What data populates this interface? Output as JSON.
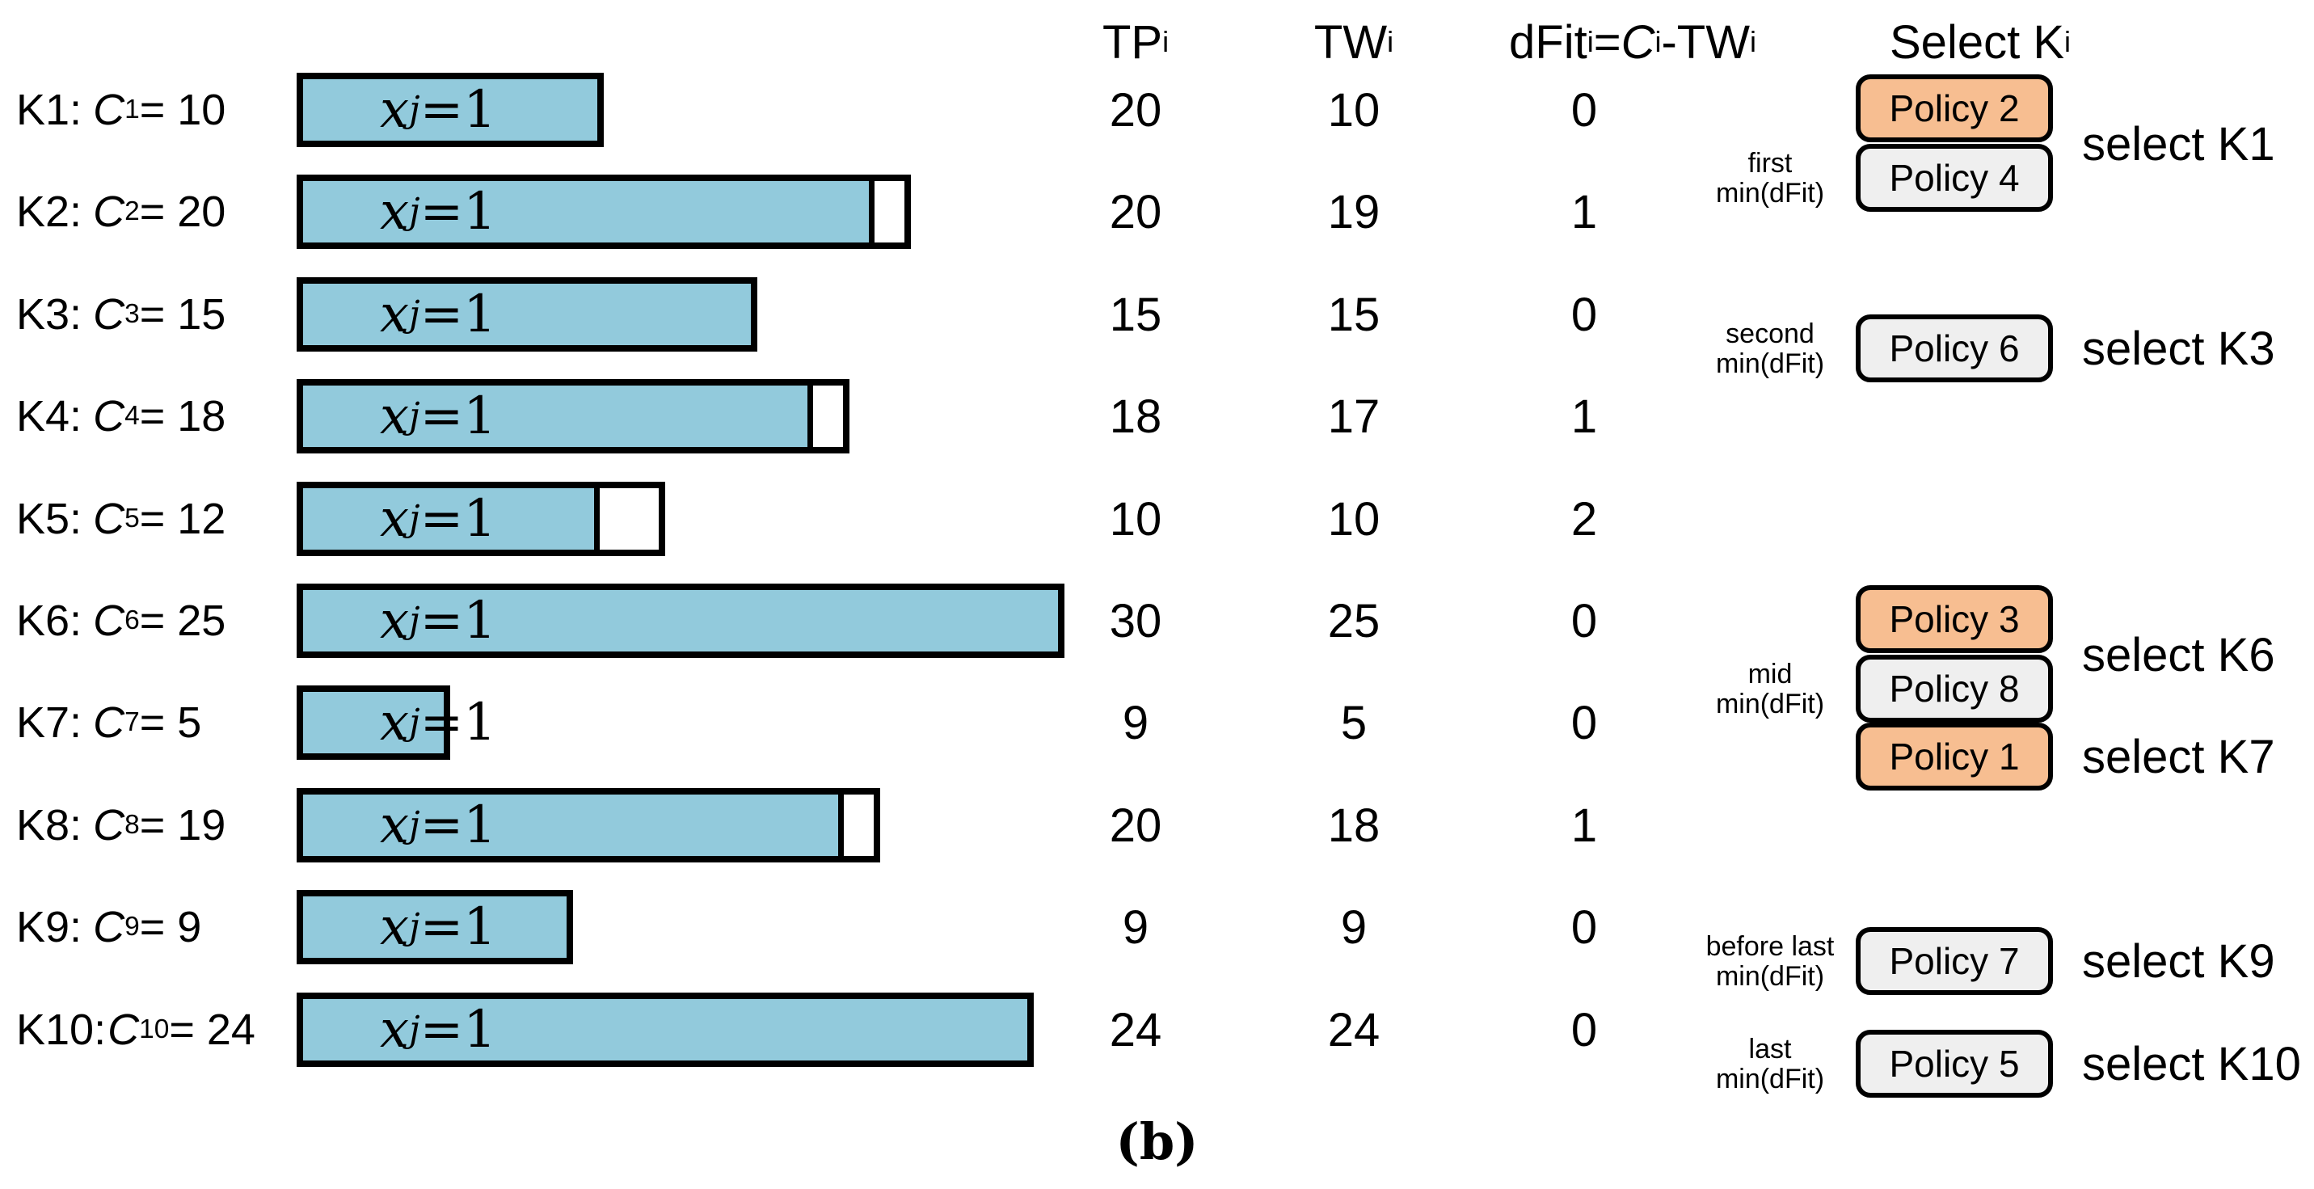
{
  "header": {
    "tp": {
      "base": "TP",
      "sub": "i"
    },
    "tw": {
      "base": "TW",
      "sub": "i"
    },
    "dfit": {
      "p1": "dFit",
      "s1": "i",
      "p2": "=",
      "var": "C",
      "s2": "i",
      "p3": "-TW",
      "s3": "i"
    },
    "select": {
      "base": "Select K",
      "sub": "i"
    }
  },
  "bar_label": {
    "var": "x",
    "sub": "j",
    "eq": "=1"
  },
  "colors": {
    "bar_fill": "#92CADC",
    "policy_selected": "#F7BE91",
    "policy_normal": "#EFEFEF",
    "border": "#000000"
  },
  "rows": [
    {
      "knapsack": "K1:",
      "cvar": "C",
      "csub": "1",
      "cval": "= 10",
      "capacity": 10,
      "filled": 10,
      "tp": 20,
      "tw": 10,
      "dfit": 0,
      "annotation": {
        "line1": "first",
        "line2": "min(dFit)"
      },
      "policies": [
        {
          "label": "Policy 2",
          "highlighted": true
        },
        {
          "label": "Policy 4",
          "highlighted": false
        }
      ],
      "select": "select K1"
    },
    {
      "knapsack": "K2:",
      "cvar": "C",
      "csub": "2",
      "cval": "= 20",
      "capacity": 20,
      "filled": 19,
      "tp": 20,
      "tw": 19,
      "dfit": 1
    },
    {
      "knapsack": "K3:",
      "cvar": "C",
      "csub": "3",
      "cval": "= 15",
      "capacity": 15,
      "filled": 15,
      "tp": 15,
      "tw": 15,
      "dfit": 0,
      "annotation": {
        "line1": "second",
        "line2": "min(dFit)"
      },
      "policies": [
        {
          "label": "Policy 6",
          "highlighted": false
        }
      ],
      "select": "select K3"
    },
    {
      "knapsack": "K4:",
      "cvar": "C",
      "csub": "4",
      "cval": "= 18",
      "capacity": 18,
      "filled": 17,
      "tp": 18,
      "tw": 17,
      "dfit": 1
    },
    {
      "knapsack": "K5:",
      "cvar": "C",
      "csub": "5",
      "cval": "= 12",
      "capacity": 12,
      "filled": 10,
      "tp": 10,
      "tw": 10,
      "dfit": 2
    },
    {
      "knapsack": "K6:",
      "cvar": "C",
      "csub": "6",
      "cval": "= 25",
      "capacity": 25,
      "filled": 25,
      "tp": 30,
      "tw": 25,
      "dfit": 0,
      "annotation": {
        "line1": "mid",
        "line2": "min(dFit)"
      },
      "policies": [
        {
          "label": "Policy 3",
          "highlighted": true
        },
        {
          "label": "Policy 8",
          "highlighted": false
        }
      ],
      "select": "select K6"
    },
    {
      "knapsack": "K7:",
      "cvar": "C",
      "csub": "7",
      "cval": "= 5",
      "capacity": 5,
      "filled": 5,
      "tp": 9,
      "tw": 5,
      "dfit": 0,
      "policies": [
        {
          "label": "Policy 1",
          "highlighted": true
        }
      ],
      "select": "select K7"
    },
    {
      "knapsack": "K8:",
      "cvar": "C",
      "csub": "8",
      "cval": "= 19",
      "capacity": 19,
      "filled": 18,
      "tp": 20,
      "tw": 18,
      "dfit": 1
    },
    {
      "knapsack": "K9:",
      "cvar": "C",
      "csub": "9",
      "cval": "= 9",
      "capacity": 9,
      "filled": 9,
      "tp": 9,
      "tw": 9,
      "dfit": 0,
      "annotation": {
        "line1": "before last",
        "line2": "min(dFit)"
      },
      "policies": [
        {
          "label": "Policy 7",
          "highlighted": false
        }
      ],
      "select": "select K9"
    },
    {
      "knapsack": "K10:",
      "cvar": "C",
      "csub": "10",
      "cval": "= 24",
      "capacity": 24,
      "filled": 24,
      "tp": 24,
      "tw": 24,
      "dfit": 0,
      "annotation": {
        "line1": "last",
        "line2": "min(dFit)"
      },
      "policies": [
        {
          "label": "Policy 5",
          "highlighted": false
        }
      ],
      "select": "select K10"
    }
  ],
  "caption": "(b)"
}
